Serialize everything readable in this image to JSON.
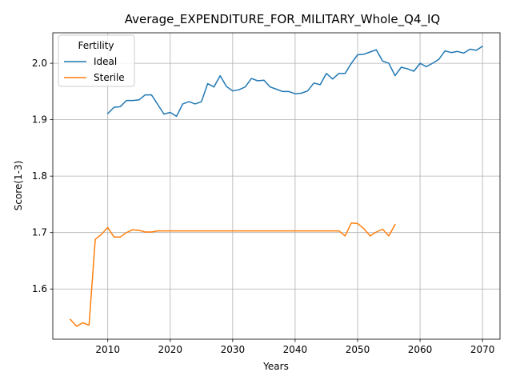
{
  "chart_data": {
    "type": "line",
    "title": "Average_EXPENDITURE_FOR_MILITARY_Whole_Q4_IQ",
    "xlabel": "Years",
    "ylabel": "Score(1-3)",
    "xlim": [
      2001.2,
      2072.8
    ],
    "ylim": [
      1.511,
      2.054
    ],
    "xticks": [
      2010,
      2020,
      2030,
      2040,
      2050,
      2060,
      2070
    ],
    "yticks": [
      1.6,
      1.7,
      1.8,
      1.9,
      2.0
    ],
    "xtick_labels": [
      "2010",
      "2020",
      "2030",
      "2040",
      "2050",
      "2060",
      "2070"
    ],
    "ytick_labels": [
      "1.6",
      "1.7",
      "1.8",
      "1.9",
      "2.0"
    ],
    "grid": true,
    "legend": {
      "title": "Fertility",
      "position": "top-left"
    },
    "series": [
      {
        "name": "Ideal",
        "color": "#1f77b4",
        "x": [
          2010,
          2011,
          2012,
          2013,
          2014,
          2015,
          2016,
          2017,
          2018,
          2019,
          2020,
          2021,
          2022,
          2023,
          2024,
          2025,
          2026,
          2027,
          2028,
          2029,
          2030,
          2031,
          2032,
          2033,
          2034,
          2035,
          2036,
          2037,
          2038,
          2039,
          2040,
          2041,
          2042,
          2043,
          2044,
          2045,
          2046,
          2047,
          2048,
          2049,
          2050,
          2051,
          2052,
          2053,
          2054,
          2055,
          2056,
          2057,
          2058,
          2059,
          2060,
          2061,
          2062,
          2063,
          2064,
          2065,
          2066,
          2067,
          2068,
          2069,
          2070
        ],
        "y": [
          1.911,
          1.922,
          1.923,
          1.934,
          1.934,
          1.935,
          1.944,
          1.944,
          1.927,
          1.91,
          1.913,
          1.906,
          1.928,
          1.932,
          1.928,
          1.932,
          1.964,
          1.958,
          1.978,
          1.959,
          1.951,
          1.953,
          1.958,
          1.973,
          1.969,
          1.97,
          1.958,
          1.954,
          1.95,
          1.95,
          1.946,
          1.947,
          1.951,
          1.965,
          1.962,
          1.982,
          1.972,
          1.982,
          1.982,
          2.0,
          2.015,
          2.016,
          2.02,
          2.024,
          2.004,
          2.0,
          1.978,
          1.993,
          1.99,
          1.986,
          2.0,
          1.994,
          2.0,
          2.007,
          2.022,
          2.019,
          2.021,
          2.018,
          2.025,
          2.023,
          2.03
        ]
      },
      {
        "name": "Sterile",
        "color": "#ff7f0e",
        "x": [
          2004,
          2005,
          2006,
          2007,
          2008,
          2009,
          2010,
          2011,
          2012,
          2013,
          2014,
          2015,
          2016,
          2017,
          2018,
          2019,
          2020,
          2021,
          2022,
          2023,
          2024,
          2025,
          2026,
          2027,
          2028,
          2029,
          2030,
          2031,
          2032,
          2033,
          2034,
          2035,
          2036,
          2037,
          2038,
          2039,
          2040,
          2041,
          2042,
          2043,
          2044,
          2045,
          2046,
          2047,
          2048,
          2049,
          2050,
          2051,
          2052,
          2053,
          2054,
          2055,
          2056
        ],
        "y": [
          1.546,
          1.534,
          1.54,
          1.536,
          1.688,
          1.697,
          1.709,
          1.692,
          1.692,
          1.7,
          1.705,
          1.704,
          1.701,
          1.701,
          1.703,
          1.703,
          1.703,
          1.703,
          1.703,
          1.703,
          1.703,
          1.703,
          1.703,
          1.703,
          1.703,
          1.703,
          1.703,
          1.703,
          1.703,
          1.703,
          1.703,
          1.703,
          1.703,
          1.703,
          1.703,
          1.703,
          1.703,
          1.703,
          1.703,
          1.703,
          1.703,
          1.703,
          1.703,
          1.703,
          1.694,
          1.717,
          1.716,
          1.707,
          1.694,
          1.701,
          1.706,
          1.694,
          1.714
        ]
      }
    ]
  }
}
